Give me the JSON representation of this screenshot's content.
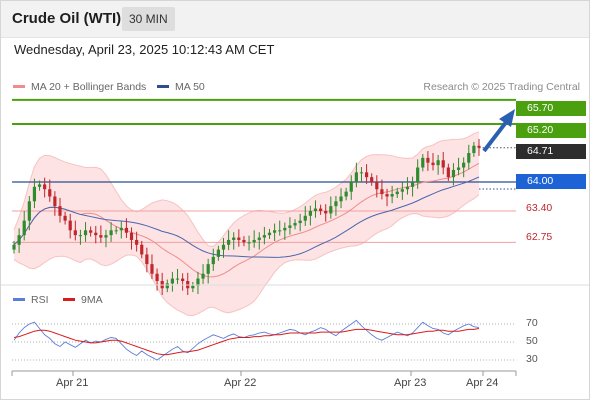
{
  "instrument": {
    "title": "Crude Oil (WTI)",
    "interval": "30 MIN"
  },
  "datetime": "Wednesday, April 23, 2025 10:12:43 AM CET",
  "legend": {
    "ma_bb": {
      "label": "MA 20 + Bollinger Bands",
      "color": "#f28b8b"
    },
    "ma50": {
      "label": "MA 50",
      "color": "#2b4f8f"
    },
    "credit": "Research © 2025 Trading Central"
  },
  "levels": {
    "r2": {
      "label": "65.70",
      "color": "#4aa00f"
    },
    "r1": {
      "label": "65.20",
      "color": "#4aa00f"
    },
    "last": {
      "label": "64.71",
      "color": "#2d2d2d"
    },
    "pivot": {
      "label": "64.00",
      "color": "#1e63d6"
    },
    "s1": {
      "label": "63.40",
      "color": "#c0272d"
    },
    "s2": {
      "label": "62.75",
      "color": "#c0272d"
    }
  },
  "rsi_legend": {
    "rsi": {
      "label": "RSI",
      "color": "#5b7fd9"
    },
    "ma9": {
      "label": "9MA",
      "color": "#d91c1c"
    }
  },
  "rsi_levels": [
    "70",
    "50",
    "30"
  ],
  "x_axis": [
    "Apr 21",
    "Apr 22",
    "Apr 23",
    "Apr 24"
  ],
  "chart_data": {
    "type": "line",
    "price_levels": [
      65.7,
      65.2,
      64.71,
      64.0,
      63.4,
      62.75
    ],
    "price_close": [
      62.7,
      62.9,
      63.2,
      63.6,
      63.9,
      63.95,
      63.85,
      63.7,
      63.5,
      63.3,
      63.2,
      63.0,
      62.9,
      62.9,
      63.0,
      62.95,
      62.9,
      62.85,
      62.9,
      63.0,
      63.0,
      63.05,
      62.95,
      62.8,
      62.7,
      62.5,
      62.3,
      62.1,
      61.95,
      61.8,
      61.9,
      62.0,
      62.0,
      61.95,
      61.8,
      61.85,
      62.0,
      62.1,
      62.3,
      62.45,
      62.6,
      62.7,
      62.8,
      62.85,
      62.8,
      62.75,
      62.75,
      62.8,
      62.85,
      62.9,
      62.95,
      63.0,
      63.0,
      63.05,
      63.1,
      63.15,
      63.2,
      63.3,
      63.4,
      63.45,
      63.4,
      63.35,
      63.5,
      63.6,
      63.7,
      63.8,
      64.0,
      64.2,
      64.2,
      64.1,
      64.0,
      63.85,
      63.75,
      63.7,
      63.75,
      63.8,
      63.85,
      63.9,
      64.0,
      64.3,
      64.5,
      64.4,
      64.35,
      64.45,
      64.3,
      64.1,
      64.25,
      64.3,
      64.4,
      64.6,
      64.75,
      64.71
    ],
    "rsi": [
      52,
      60,
      66,
      70,
      72,
      65,
      58,
      54,
      48,
      45,
      50,
      47,
      44,
      48,
      52,
      49,
      51,
      50,
      53,
      55,
      54,
      48,
      42,
      38,
      35,
      40,
      36,
      33,
      30,
      34,
      38,
      42,
      45,
      40,
      38,
      43,
      48,
      52,
      55,
      58,
      56,
      54,
      57,
      59,
      56,
      55,
      57,
      58,
      60,
      61,
      59,
      58,
      60,
      62,
      64,
      63,
      60,
      58,
      61,
      63,
      66,
      64,
      60,
      57,
      62,
      66,
      70,
      74,
      68,
      63,
      58,
      54,
      52,
      55,
      58,
      61,
      59,
      57,
      60,
      66,
      72,
      68,
      65,
      64,
      60,
      58,
      62,
      65,
      68,
      70,
      67,
      66
    ],
    "rsi_ma9": [
      55,
      56,
      58,
      60,
      62,
      63,
      63,
      62,
      60,
      58,
      56,
      54,
      52,
      51,
      50,
      49,
      49,
      50,
      51,
      52,
      52,
      51,
      49,
      47,
      45,
      43,
      41,
      39,
      37,
      36,
      36,
      37,
      38,
      39,
      39,
      40,
      41,
      43,
      45,
      47,
      49,
      51,
      53,
      54,
      55,
      55,
      55,
      56,
      56,
      57,
      57,
      58,
      58,
      59,
      60,
      60,
      60,
      60,
      60,
      60,
      61,
      61,
      61,
      61,
      61,
      62,
      63,
      64,
      64,
      64,
      63,
      62,
      61,
      60,
      59,
      58,
      58,
      58,
      59,
      60,
      61,
      62,
      62,
      63,
      63,
      62,
      62,
      62,
      63,
      64,
      64,
      65
    ],
    "rsi_levels": [
      70,
      50,
      30
    ],
    "x_labels": [
      "Apr 21",
      "Apr 22",
      "Apr 23",
      "Apr 24"
    ]
  }
}
